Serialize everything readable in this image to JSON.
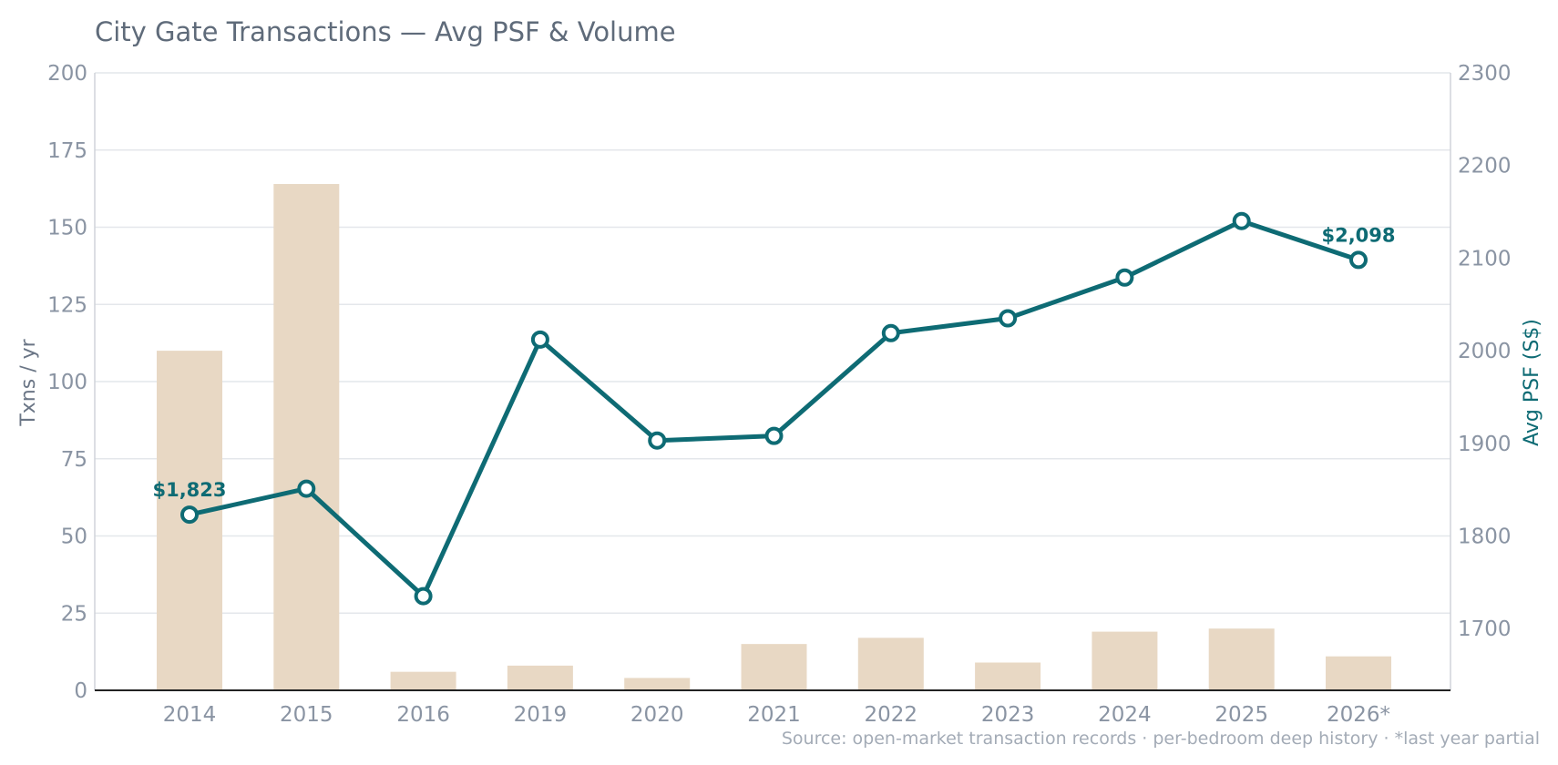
{
  "chart_data": {
    "type": "bar+line",
    "title": "City Gate Transactions — Avg PSF & Volume",
    "categories": [
      "2014",
      "2015",
      "2016",
      "2019",
      "2020",
      "2021",
      "2022",
      "2023",
      "2024",
      "2025",
      "2026*"
    ],
    "series": [
      {
        "name": "Txns / yr",
        "type": "bar",
        "axis": "left",
        "values": [
          110,
          164,
          6,
          8,
          4,
          15,
          17,
          9,
          19,
          20,
          11
        ]
      },
      {
        "name": "Avg PSF (S$)",
        "type": "line",
        "axis": "right",
        "values": [
          1823,
          1851,
          1735,
          2012,
          1903,
          1908,
          2019,
          2035,
          2079,
          2140,
          2098
        ]
      }
    ],
    "y_left": {
      "label": "Txns / yr",
      "ticks": [
        "0",
        "25",
        "50",
        "75",
        "100",
        "125",
        "150",
        "175",
        "200"
      ],
      "lim": [
        0,
        200
      ]
    },
    "y_right": {
      "label": "Avg PSF (S$)",
      "ticks": [
        "1700",
        "1800",
        "1900",
        "2000",
        "2100",
        "2200",
        "2300"
      ],
      "lim": [
        1633.3,
        2300
      ]
    },
    "annotations": [
      {
        "index": 0,
        "text": "$1,823"
      },
      {
        "index": 10,
        "text": "$2,098"
      }
    ],
    "source": "Source: open-market transaction records · per-bedroom deep history · *last year partial",
    "grid": "horizontal",
    "colors": {
      "bar": "#e8d8c4",
      "line": "#0e6b74",
      "grid": "#e4e7eb",
      "axis": "#222222"
    }
  }
}
